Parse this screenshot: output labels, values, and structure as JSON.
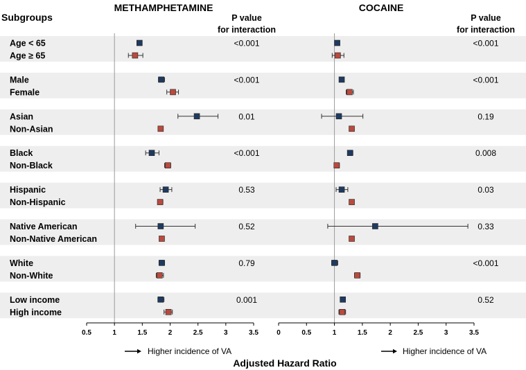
{
  "headers": {
    "subgroups": "Subgroups",
    "pvalue_line1": "P value",
    "pvalue_line2": "for interaction"
  },
  "x_axis_label": "Adjusted Hazard Ratio",
  "direction_note": "Higher incidence of VA",
  "colors": {
    "first": "#1f3a5f",
    "second": "#b84a3e",
    "band": "#eeeeee"
  },
  "chart_data": [
    {
      "type": "forest",
      "title": "METHAMPHETAMINE",
      "xlim": [
        0.5,
        3.5
      ],
      "ticks": [
        "0.5",
        "1",
        "1.5",
        "2",
        "2.5",
        "3",
        "3.5"
      ],
      "reference_line": 1,
      "groups": [
        {
          "labels": [
            "Age < 65",
            "Age ≥ 65"
          ],
          "points": [
            {
              "hr": 1.45,
              "lo": 1.42,
              "hi": 1.49
            },
            {
              "hr": 1.37,
              "lo": 1.25,
              "hi": 1.51
            }
          ],
          "p": "<0.001"
        },
        {
          "labels": [
            "Male",
            "Female"
          ],
          "points": [
            {
              "hr": 1.84,
              "lo": 1.79,
              "hi": 1.9
            },
            {
              "hr": 2.05,
              "lo": 1.94,
              "hi": 2.15
            }
          ],
          "p": "<0.001"
        },
        {
          "labels": [
            "Asian",
            "Non-Asian"
          ],
          "points": [
            {
              "hr": 2.48,
              "lo": 2.14,
              "hi": 2.86
            },
            {
              "hr": 1.83,
              "lo": 1.79,
              "hi": 1.87
            }
          ],
          "p": "0.01"
        },
        {
          "labels": [
            "Black",
            "Non-Black"
          ],
          "points": [
            {
              "hr": 1.67,
              "lo": 1.56,
              "hi": 1.8
            },
            {
              "hr": 1.96,
              "lo": 1.9,
              "hi": 2.01
            }
          ],
          "p": "<0.001"
        },
        {
          "labels": [
            "Hispanic",
            "Non-Hispanic"
          ],
          "points": [
            {
              "hr": 1.92,
              "lo": 1.82,
              "hi": 2.03
            },
            {
              "hr": 1.82,
              "lo": 1.78,
              "hi": 1.87
            }
          ],
          "p": "0.53"
        },
        {
          "labels": [
            "Native American",
            "Non-Native American"
          ],
          "points": [
            {
              "hr": 1.83,
              "lo": 1.38,
              "hi": 2.45
            },
            {
              "hr": 1.85,
              "lo": 1.81,
              "hi": 1.89
            }
          ],
          "p": "0.52"
        },
        {
          "labels": [
            "White",
            "Non-White"
          ],
          "points": [
            {
              "hr": 1.85,
              "lo": 1.8,
              "hi": 1.9
            },
            {
              "hr": 1.81,
              "lo": 1.75,
              "hi": 1.88
            }
          ],
          "p": "0.79"
        },
        {
          "labels": [
            "Low income",
            "High income"
          ],
          "points": [
            {
              "hr": 1.83,
              "lo": 1.78,
              "hi": 1.89
            },
            {
              "hr": 1.97,
              "lo": 1.89,
              "hi": 2.04
            }
          ],
          "p": "0.001"
        }
      ]
    },
    {
      "type": "forest",
      "title": "COCAINE",
      "xlim": [
        0,
        3.5
      ],
      "ticks": [
        "0",
        "0.5",
        "1",
        "1.5",
        "2",
        "2.5",
        "3",
        "3.5"
      ],
      "reference_line": 1,
      "groups": [
        {
          "labels": [
            "Age < 65",
            "Age ≥ 65"
          ],
          "points": [
            {
              "hr": 1.05,
              "lo": 1.03,
              "hi": 1.08
            },
            {
              "hr": 1.06,
              "lo": 0.96,
              "hi": 1.17
            }
          ],
          "p": "<0.001"
        },
        {
          "labels": [
            "Male",
            "Female"
          ],
          "points": [
            {
              "hr": 1.13,
              "lo": 1.1,
              "hi": 1.16
            },
            {
              "hr": 1.27,
              "lo": 1.21,
              "hi": 1.34
            }
          ],
          "p": "<0.001"
        },
        {
          "labels": [
            "Asian",
            "Non-Asian"
          ],
          "points": [
            {
              "hr": 1.08,
              "lo": 0.77,
              "hi": 1.51
            },
            {
              "hr": 1.31,
              "lo": 1.27,
              "hi": 1.34
            }
          ],
          "p": "0.19"
        },
        {
          "labels": [
            "Black",
            "Non-Black"
          ],
          "points": [
            {
              "hr": 1.28,
              "lo": 1.24,
              "hi": 1.33
            },
            {
              "hr": 1.04,
              "lo": 1.0,
              "hi": 1.09
            }
          ],
          "p": "0.008"
        },
        {
          "labels": [
            "Hispanic",
            "Non-Hispanic"
          ],
          "points": [
            {
              "hr": 1.13,
              "lo": 1.03,
              "hi": 1.24
            },
            {
              "hr": 1.31,
              "lo": 1.27,
              "hi": 1.35
            }
          ],
          "p": "0.03"
        },
        {
          "labels": [
            "Native American",
            "Non-Native American"
          ],
          "points": [
            {
              "hr": 1.73,
              "lo": 0.88,
              "hi": 3.39
            },
            {
              "hr": 1.31,
              "lo": 1.27,
              "hi": 1.35
            }
          ],
          "p": "0.33"
        },
        {
          "labels": [
            "White",
            "Non-White"
          ],
          "points": [
            {
              "hr": 1.0,
              "lo": 0.95,
              "hi": 1.06
            },
            {
              "hr": 1.41,
              "lo": 1.36,
              "hi": 1.46
            }
          ],
          "p": "<0.001"
        },
        {
          "labels": [
            "Low income",
            "High income"
          ],
          "points": [
            {
              "hr": 1.15,
              "lo": 1.11,
              "hi": 1.19
            },
            {
              "hr": 1.14,
              "lo": 1.08,
              "hi": 1.2
            }
          ],
          "p": "0.52"
        }
      ]
    }
  ]
}
